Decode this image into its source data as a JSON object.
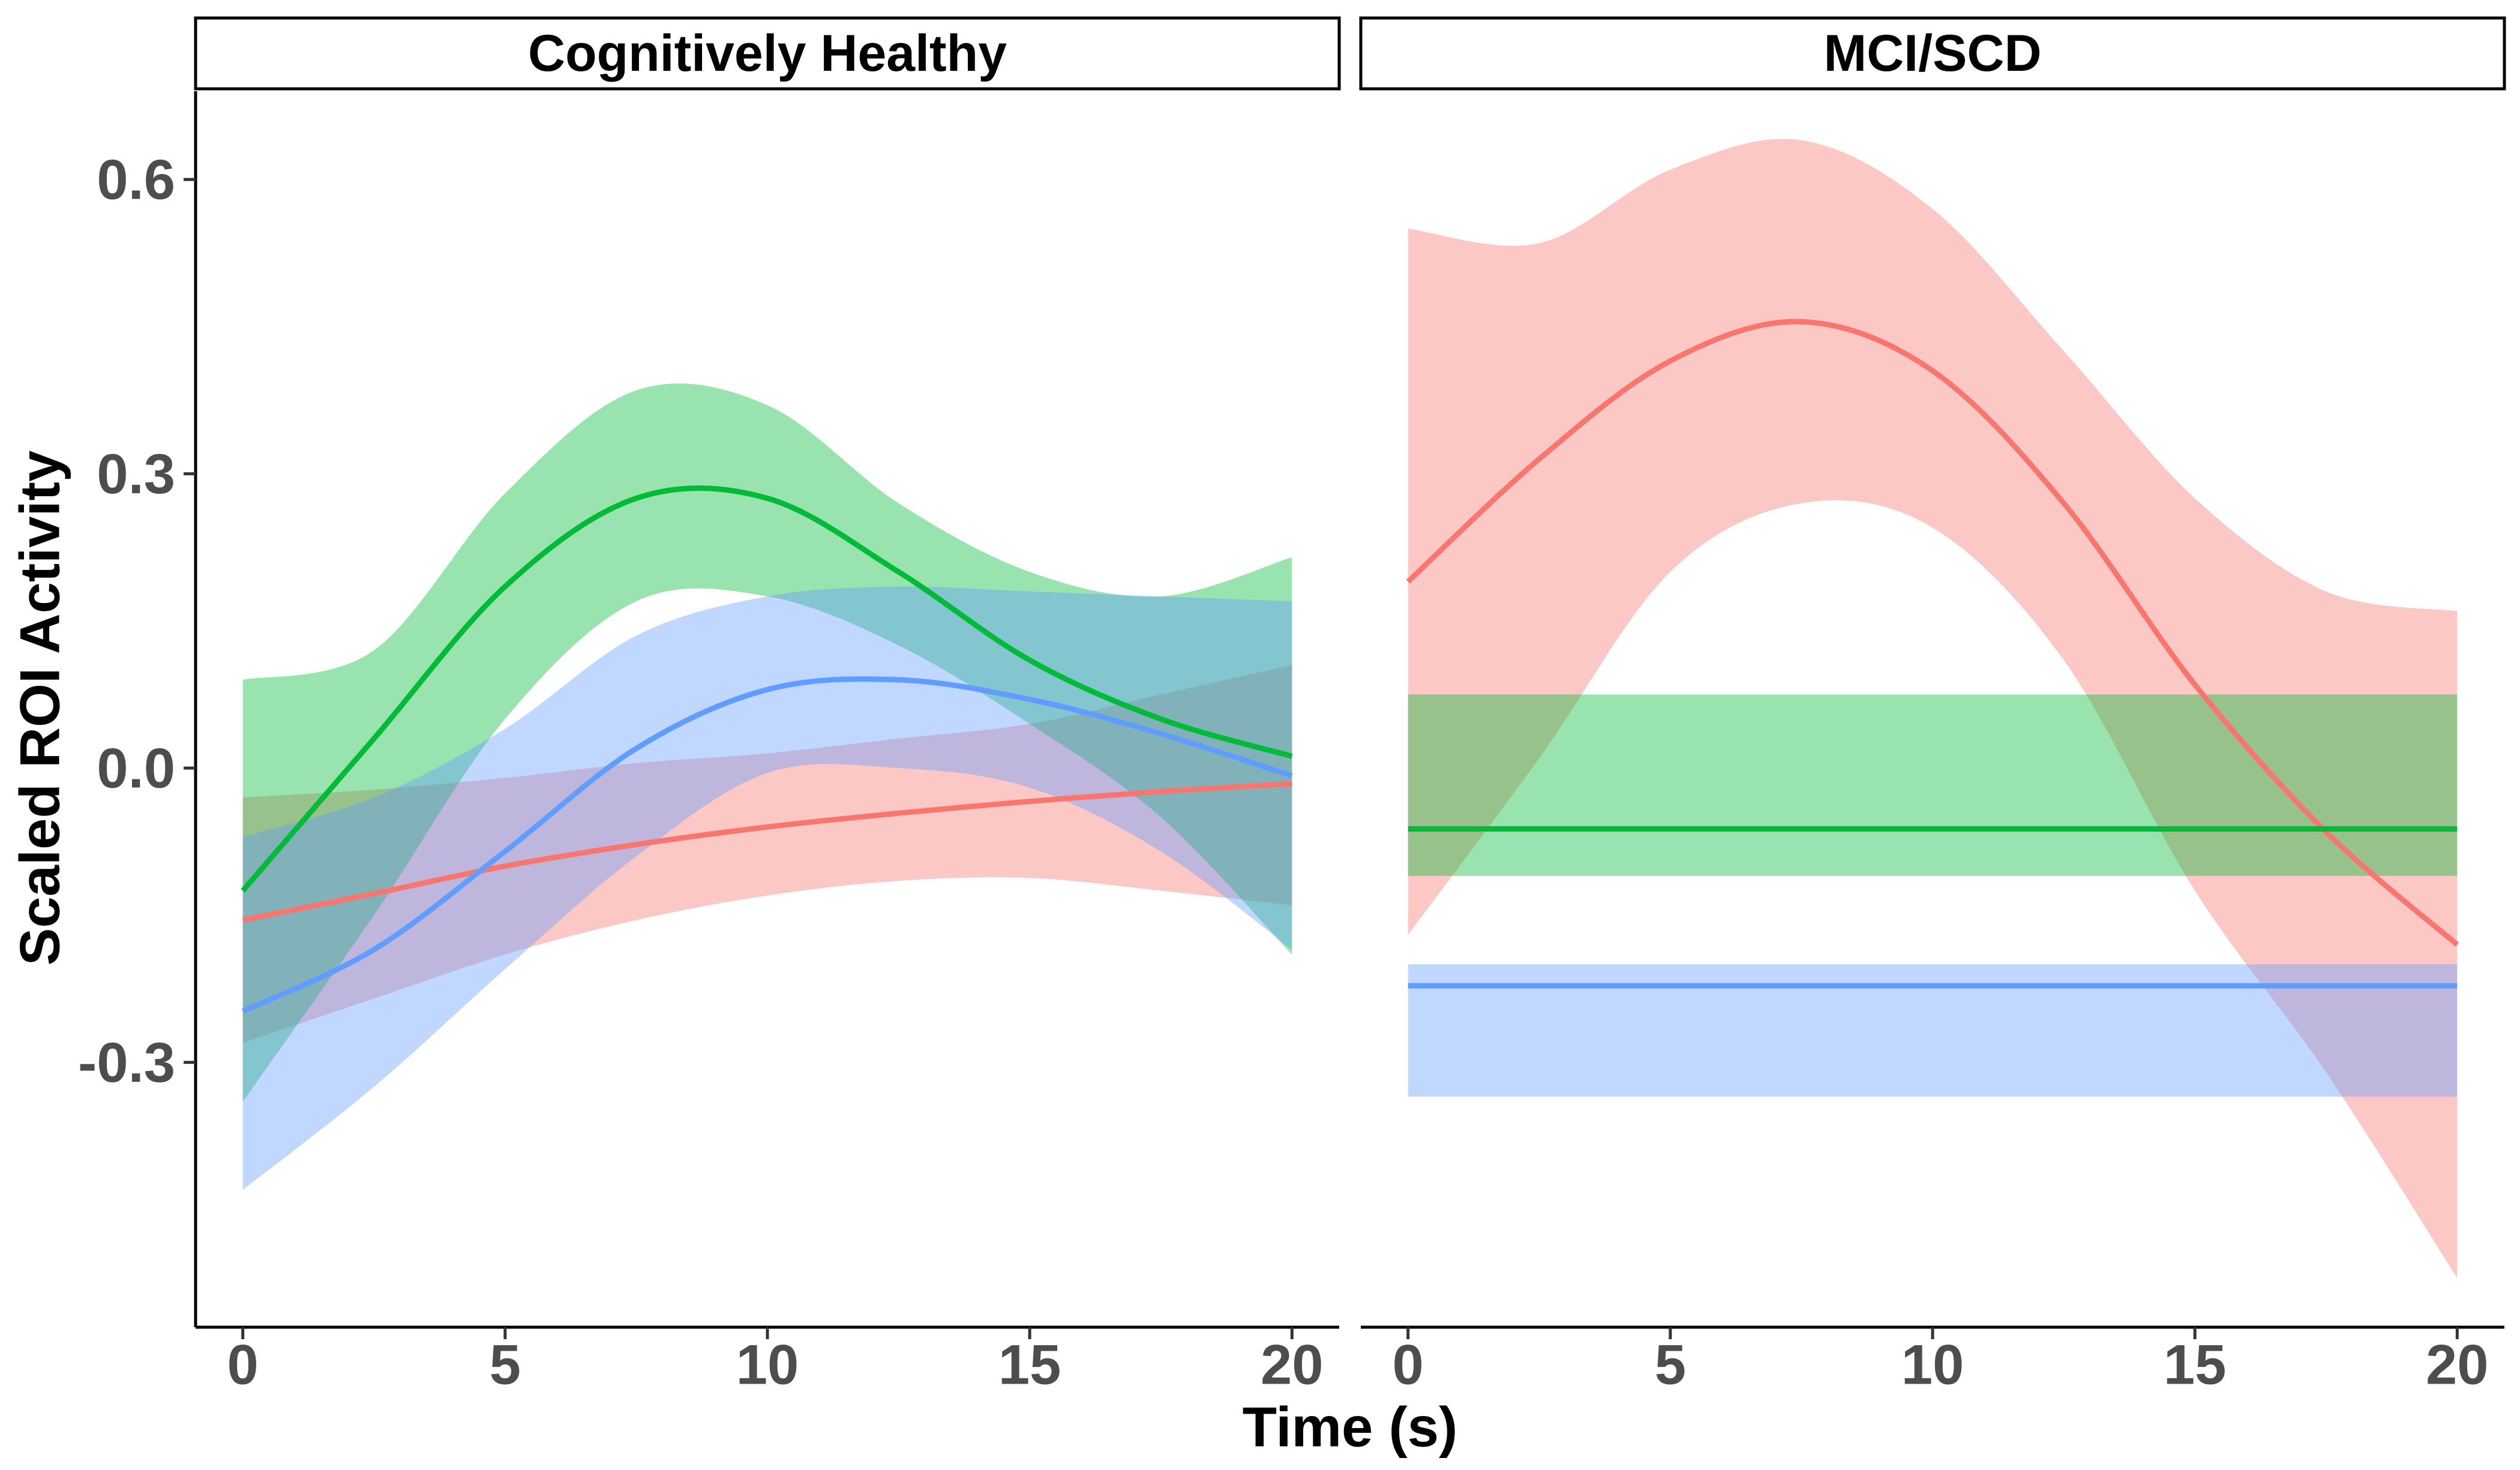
{
  "chart_data": {
    "type": "line",
    "facets": [
      "Cognitively Healthy",
      "MCI/SCD"
    ],
    "xlabel": "Time (s)",
    "ylabel": "Scaled ROI Activity",
    "xlim": [
      -0.9,
      20.9
    ],
    "ylim": [
      -0.57,
      0.69
    ],
    "x_ticks": [
      0,
      5,
      10,
      15,
      20
    ],
    "y_ticks": [
      -0.3,
      0.0,
      0.3,
      0.6
    ],
    "y_tick_labels": [
      "-0.3",
      "0.0",
      "0.3",
      "0.6"
    ],
    "grid": false,
    "legend": "none",
    "band_opacity": 0.4,
    "panels": [
      {
        "facet": "Cognitively Healthy",
        "series": [
          {
            "color": "#F8766D",
            "x": [
              0,
              2.5,
              5,
              7.5,
              10,
              12.5,
              15,
              17.5,
              20
            ],
            "values": [
              -0.155,
              -0.128,
              -0.1,
              -0.078,
              -0.06,
              -0.046,
              -0.034,
              -0.024,
              -0.016
            ],
            "lower": [
              -0.28,
              -0.235,
              -0.19,
              -0.155,
              -0.13,
              -0.115,
              -0.112,
              -0.125,
              -0.14
            ],
            "upper": [
              -0.03,
              -0.022,
              -0.01,
              0.005,
              0.015,
              0.03,
              0.045,
              0.075,
              0.105
            ]
          },
          {
            "color": "#00BA38",
            "x": [
              0,
              2.5,
              5,
              7.5,
              10,
              12.5,
              15,
              17.5,
              20
            ],
            "values": [
              -0.125,
              0.03,
              0.185,
              0.275,
              0.275,
              0.2,
              0.11,
              0.05,
              0.012
            ],
            "lower": [
              -0.34,
              -0.15,
              0.05,
              0.17,
              0.175,
              0.125,
              0.045,
              -0.05,
              -0.19
            ],
            "upper": [
              0.09,
              0.12,
              0.28,
              0.385,
              0.37,
              0.27,
              0.2,
              0.175,
              0.215
            ]
          },
          {
            "color": "#619CFF",
            "x": [
              0,
              2.5,
              5,
              7.5,
              10,
              12.5,
              15,
              17.5,
              20
            ],
            "values": [
              -0.248,
              -0.185,
              -0.085,
              0.02,
              0.08,
              0.09,
              0.07,
              0.035,
              -0.008
            ],
            "lower": [
              -0.43,
              -0.325,
              -0.205,
              -0.09,
              -0.005,
              0.0,
              -0.02,
              -0.085,
              -0.185
            ],
            "upper": [
              -0.07,
              -0.03,
              0.04,
              0.135,
              0.175,
              0.185,
              0.18,
              0.175,
              0.17
            ]
          }
        ]
      },
      {
        "facet": "MCI/SCD",
        "series": [
          {
            "color": "#F8766D",
            "x": [
              0,
              2.5,
              5,
              7.5,
              10,
              12.5,
              15,
              17.5,
              20
            ],
            "values": [
              0.19,
              0.315,
              0.415,
              0.455,
              0.405,
              0.27,
              0.085,
              -0.065,
              -0.18
            ],
            "lower": [
              -0.17,
              0.01,
              0.2,
              0.27,
              0.245,
              0.11,
              -0.125,
              -0.31,
              -0.52
            ],
            "upper": [
              0.55,
              0.535,
              0.61,
              0.64,
              0.57,
              0.425,
              0.275,
              0.18,
              0.16
            ]
          },
          {
            "color": "#00BA38",
            "x": [
              0,
              20
            ],
            "values": [
              -0.062,
              -0.062
            ],
            "lower": [
              -0.11,
              -0.11
            ],
            "upper": [
              0.075,
              0.075
            ]
          },
          {
            "color": "#619CFF",
            "x": [
              0,
              20
            ],
            "values": [
              -0.222,
              -0.222
            ],
            "lower": [
              -0.335,
              -0.335
            ],
            "upper": [
              -0.2,
              -0.2
            ]
          }
        ]
      }
    ]
  }
}
